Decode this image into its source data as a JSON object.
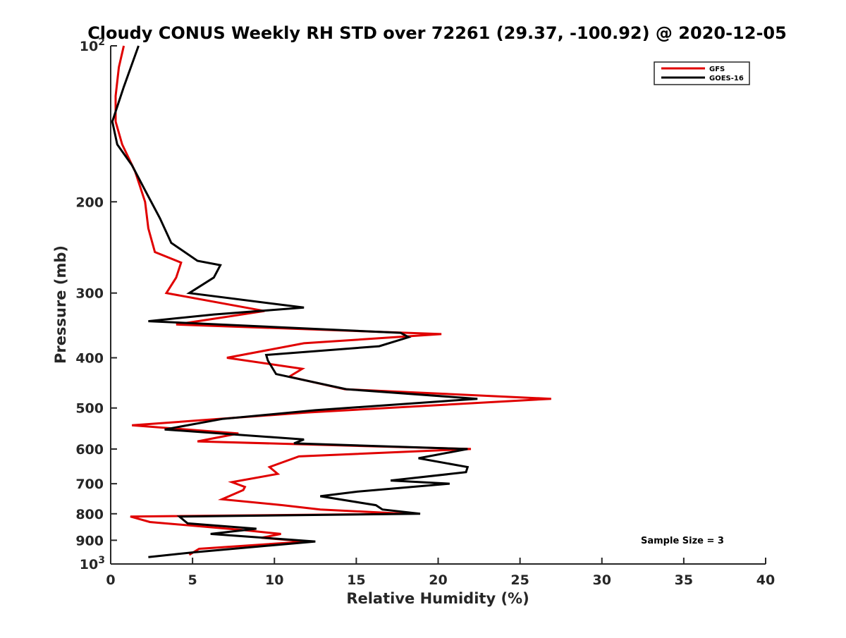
{
  "chart_data": {
    "type": "line",
    "title": "Cloudy CONUS Weekly RH STD over 72261 (29.37, -100.92) @ 2020-12-05",
    "xlabel": "Relative Humidity (%)",
    "ylabel": "Pressure (mb)",
    "xlim": [
      0,
      40
    ],
    "ylim": [
      100,
      1000
    ],
    "y_scale": "log",
    "y_reversed": true,
    "x_ticks": [
      "0",
      "5",
      "10",
      "15",
      "20",
      "25",
      "30",
      "35",
      "40"
    ],
    "y_ticks": [
      {
        "value": 100,
        "label": "10",
        "sup": "2"
      },
      {
        "value": 200,
        "label": "200",
        "sup": ""
      },
      {
        "value": 300,
        "label": "300",
        "sup": ""
      },
      {
        "value": 400,
        "label": "400",
        "sup": ""
      },
      {
        "value": 500,
        "label": "500",
        "sup": ""
      },
      {
        "value": 600,
        "label": "600",
        "sup": ""
      },
      {
        "value": 700,
        "label": "700",
        "sup": ""
      },
      {
        "value": 800,
        "label": "800",
        "sup": ""
      },
      {
        "value": 900,
        "label": "900",
        "sup": ""
      },
      {
        "value": 1000,
        "label": "10",
        "sup": "3"
      }
    ],
    "grid": false,
    "legend_position": "top-right",
    "annotation": "Sample Size = 3",
    "series": [
      {
        "name": "GFS",
        "color": "#e00000",
        "points": [
          [
            0.8,
            100
          ],
          [
            0.5,
            110
          ],
          [
            0.3,
            125
          ],
          [
            0.3,
            140
          ],
          [
            0.7,
            155
          ],
          [
            1.5,
            175
          ],
          [
            2.1,
            200
          ],
          [
            2.3,
            225
          ],
          [
            2.7,
            250
          ],
          [
            4.3,
            262
          ],
          [
            4.0,
            280
          ],
          [
            3.4,
            300
          ],
          [
            9.4,
            325
          ],
          [
            4.0,
            345
          ],
          [
            20.2,
            360
          ],
          [
            11.8,
            375
          ],
          [
            7.1,
            400
          ],
          [
            11.7,
            420
          ],
          [
            10.9,
            435
          ],
          [
            14.3,
            460
          ],
          [
            26.9,
            480
          ],
          [
            12.0,
            510
          ],
          [
            1.3,
            540
          ],
          [
            7.8,
            560
          ],
          [
            5.3,
            580
          ],
          [
            22.0,
            600
          ],
          [
            11.5,
            620
          ],
          [
            9.7,
            650
          ],
          [
            10.2,
            670
          ],
          [
            7.4,
            695
          ],
          [
            8.2,
            710
          ],
          [
            8.1,
            720
          ],
          [
            6.8,
            750
          ],
          [
            10.5,
            770
          ],
          [
            12.8,
            785
          ],
          [
            18.0,
            800
          ],
          [
            1.2,
            810
          ],
          [
            2.4,
            830
          ],
          [
            8.1,
            860
          ],
          [
            10.4,
            875
          ],
          [
            9.2,
            890
          ],
          [
            12.0,
            905
          ],
          [
            5.4,
            935
          ],
          [
            4.8,
            960
          ]
        ]
      },
      {
        "name": "GOES-16",
        "color": "#000000",
        "points": [
          [
            1.7,
            100
          ],
          [
            0.8,
            120
          ],
          [
            0.1,
            140
          ],
          [
            0.4,
            155
          ],
          [
            1.3,
            170
          ],
          [
            2.1,
            190
          ],
          [
            3.0,
            215
          ],
          [
            3.7,
            240
          ],
          [
            5.3,
            260
          ],
          [
            6.7,
            265
          ],
          [
            6.3,
            280
          ],
          [
            4.8,
            300
          ],
          [
            11.8,
            320
          ],
          [
            6.3,
            330
          ],
          [
            2.3,
            340
          ],
          [
            17.7,
            358
          ],
          [
            18.2,
            365
          ],
          [
            16.4,
            380
          ],
          [
            9.5,
            395
          ],
          [
            9.6,
            405
          ],
          [
            10.1,
            430
          ],
          [
            14.4,
            460
          ],
          [
            22.4,
            480
          ],
          [
            12.5,
            505
          ],
          [
            6.8,
            525
          ],
          [
            3.3,
            550
          ],
          [
            11.8,
            575
          ],
          [
            11.2,
            585
          ],
          [
            21.8,
            600
          ],
          [
            18.8,
            625
          ],
          [
            21.8,
            650
          ],
          [
            21.7,
            665
          ],
          [
            17.1,
            690
          ],
          [
            20.7,
            700
          ],
          [
            15.1,
            725
          ],
          [
            12.8,
            740
          ],
          [
            16.2,
            770
          ],
          [
            16.6,
            785
          ],
          [
            18.9,
            800
          ],
          [
            4.2,
            810
          ],
          [
            4.5,
            825
          ],
          [
            4.7,
            835
          ],
          [
            8.9,
            855
          ],
          [
            6.1,
            875
          ],
          [
            12.5,
            905
          ],
          [
            5.0,
            950
          ],
          [
            2.3,
            970
          ]
        ]
      }
    ]
  }
}
